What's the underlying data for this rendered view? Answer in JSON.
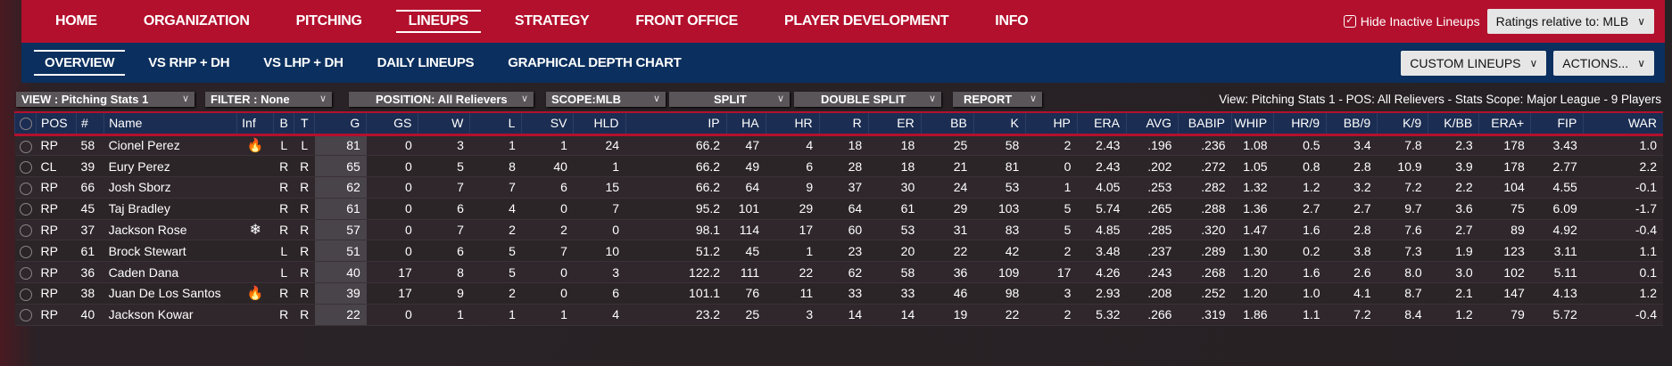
{
  "top_nav": {
    "items": [
      "HOME",
      "ORGANIZATION",
      "PITCHING",
      "LINEUPS",
      "STRATEGY",
      "FRONT OFFICE",
      "PLAYER DEVELOPMENT",
      "INFO"
    ],
    "active": "LINEUPS",
    "hide_inactive_label": "Hide Inactive Lineups",
    "hide_inactive_checked": true,
    "ratings_relative": "Ratings relative to: MLB"
  },
  "sub_nav": {
    "items": [
      "OVERVIEW",
      "VS RHP + DH",
      "VS LHP + DH",
      "DAILY LINEUPS",
      "GRAPHICAL DEPTH CHART"
    ],
    "active": "OVERVIEW",
    "custom_lineups": "CUSTOM LINEUPS",
    "actions": "ACTIONS..."
  },
  "toolbar": {
    "view": "VIEW : Pitching Stats 1",
    "filter": "FILTER : None",
    "position": "POSITION: All Relievers",
    "scope": "SCOPE:MLB",
    "split": "SPLIT",
    "double_split": "DOUBLE SPLIT",
    "report": "REPORT",
    "summary": "View: Pitching Stats 1 - POS: All Relievers - Stats Scope: Major League - 9 Players"
  },
  "table": {
    "columns": [
      "POS",
      "#",
      "Name",
      "Inf",
      "B",
      "T",
      "G",
      "GS",
      "W",
      "L",
      "SV",
      "HLD",
      "IP",
      "HA",
      "HR",
      "R",
      "ER",
      "BB",
      "K",
      "HP",
      "ERA",
      "AVG",
      "BABIP",
      "WHIP",
      "HR/9",
      "BB/9",
      "K/9",
      "K/BB",
      "ERA+",
      "FIP",
      "WAR"
    ],
    "rows": [
      [
        "RP",
        "58",
        "Cionel Perez",
        "fire-icon",
        "L",
        "L",
        "81",
        "0",
        "3",
        "1",
        "1",
        "24",
        "66.2",
        "47",
        "4",
        "18",
        "18",
        "25",
        "58",
        "2",
        "2.43",
        ".196",
        ".236",
        "1.08",
        "0.5",
        "3.4",
        "7.8",
        "2.3",
        "178",
        "3.43",
        "1.0"
      ],
      [
        "CL",
        "39",
        "Eury Perez",
        "",
        "R",
        "R",
        "65",
        "0",
        "5",
        "8",
        "40",
        "1",
        "66.2",
        "49",
        "6",
        "28",
        "18",
        "21",
        "81",
        "0",
        "2.43",
        ".202",
        ".272",
        "1.05",
        "0.8",
        "2.8",
        "10.9",
        "3.9",
        "178",
        "2.77",
        "2.2"
      ],
      [
        "RP",
        "66",
        "Josh Sborz",
        "",
        "R",
        "R",
        "62",
        "0",
        "7",
        "7",
        "6",
        "15",
        "66.2",
        "64",
        "9",
        "37",
        "30",
        "24",
        "53",
        "1",
        "4.05",
        ".253",
        ".282",
        "1.32",
        "1.2",
        "3.2",
        "7.2",
        "2.2",
        "104",
        "4.55",
        "-0.1"
      ],
      [
        "RP",
        "45",
        "Taj Bradley",
        "",
        "R",
        "R",
        "61",
        "0",
        "6",
        "4",
        "0",
        "7",
        "95.2",
        "101",
        "29",
        "64",
        "61",
        "29",
        "103",
        "5",
        "5.74",
        ".265",
        ".288",
        "1.36",
        "2.7",
        "2.7",
        "9.7",
        "3.6",
        "75",
        "6.09",
        "-1.7"
      ],
      [
        "RP",
        "37",
        "Jackson Rose",
        "snowflake-icon",
        "R",
        "R",
        "57",
        "0",
        "7",
        "2",
        "2",
        "0",
        "98.1",
        "114",
        "17",
        "60",
        "53",
        "31",
        "83",
        "5",
        "4.85",
        ".285",
        ".320",
        "1.47",
        "1.6",
        "2.8",
        "7.6",
        "2.7",
        "89",
        "4.92",
        "-0.4"
      ],
      [
        "RP",
        "61",
        "Brock Stewart",
        "",
        "L",
        "R",
        "51",
        "0",
        "6",
        "5",
        "7",
        "10",
        "51.2",
        "45",
        "1",
        "23",
        "20",
        "22",
        "42",
        "2",
        "3.48",
        ".237",
        ".289",
        "1.30",
        "0.2",
        "3.8",
        "7.3",
        "1.9",
        "123",
        "3.11",
        "1.1"
      ],
      [
        "RP",
        "36",
        "Caden Dana",
        "",
        "L",
        "R",
        "40",
        "17",
        "8",
        "5",
        "0",
        "3",
        "122.2",
        "111",
        "22",
        "62",
        "58",
        "36",
        "109",
        "17",
        "4.26",
        ".243",
        ".268",
        "1.20",
        "1.6",
        "2.6",
        "8.0",
        "3.0",
        "102",
        "5.11",
        "0.1"
      ],
      [
        "RP",
        "38",
        "Juan De Los Santos",
        "fire-icon",
        "R",
        "R",
        "39",
        "17",
        "9",
        "2",
        "0",
        "6",
        "101.1",
        "76",
        "11",
        "33",
        "33",
        "46",
        "98",
        "3",
        "2.93",
        ".208",
        ".252",
        "1.20",
        "1.0",
        "4.1",
        "8.7",
        "2.1",
        "147",
        "4.13",
        "1.2"
      ],
      [
        "RP",
        "40",
        "Jackson Kowar",
        "",
        "R",
        "R",
        "22",
        "0",
        "1",
        "1",
        "1",
        "4",
        "23.2",
        "25",
        "3",
        "14",
        "14",
        "19",
        "22",
        "2",
        "5.32",
        ".266",
        ".319",
        "1.86",
        "1.1",
        "7.2",
        "8.4",
        "1.2",
        "79",
        "5.72",
        "-0.4"
      ]
    ]
  },
  "colors": {
    "nav_red": "#b3102d",
    "nav_blue": "#0b2f5e",
    "header_blue": "#1b2d52"
  }
}
